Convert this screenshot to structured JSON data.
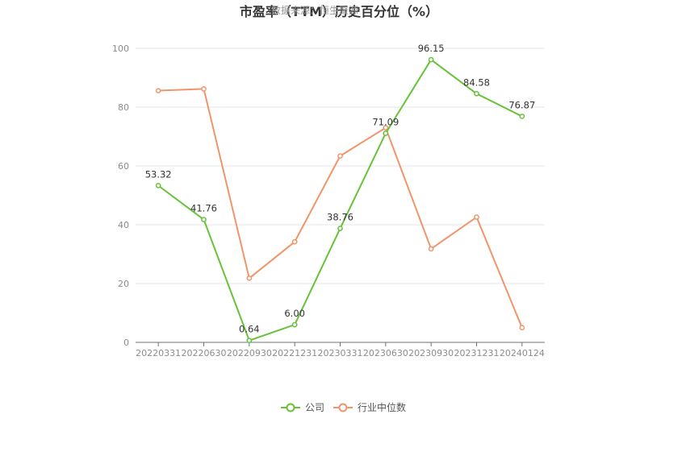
{
  "chart_data": {
    "type": "line",
    "title": "市盈率（TTM）历史百分位（%）",
    "watermark": "数据来源：恒生聚源",
    "categories": [
      "20220331",
      "20220630",
      "20220930",
      "20221231",
      "20230331",
      "20230630",
      "20230930",
      "20231231",
      "20240124"
    ],
    "ylim": [
      0,
      100
    ],
    "yticks": [
      0,
      20,
      40,
      60,
      80,
      100
    ],
    "grid": true,
    "legend_position": "bottom-center",
    "series": [
      {
        "name": "公司",
        "color": "#67c23a",
        "values": [
          53.32,
          41.76,
          0.64,
          6.0,
          38.76,
          71.09,
          96.15,
          84.58,
          76.87
        ],
        "labels": [
          "53.32",
          "41.76",
          "0.64",
          "6.00",
          "38.76",
          "71.09",
          "96.15",
          "84.58",
          "76.87"
        ]
      },
      {
        "name": "行业中位数",
        "color": "#f0956a",
        "values": [
          85.6,
          86.2,
          21.8,
          34.2,
          63.4,
          73.0,
          31.8,
          42.6,
          5.0
        ]
      }
    ]
  }
}
